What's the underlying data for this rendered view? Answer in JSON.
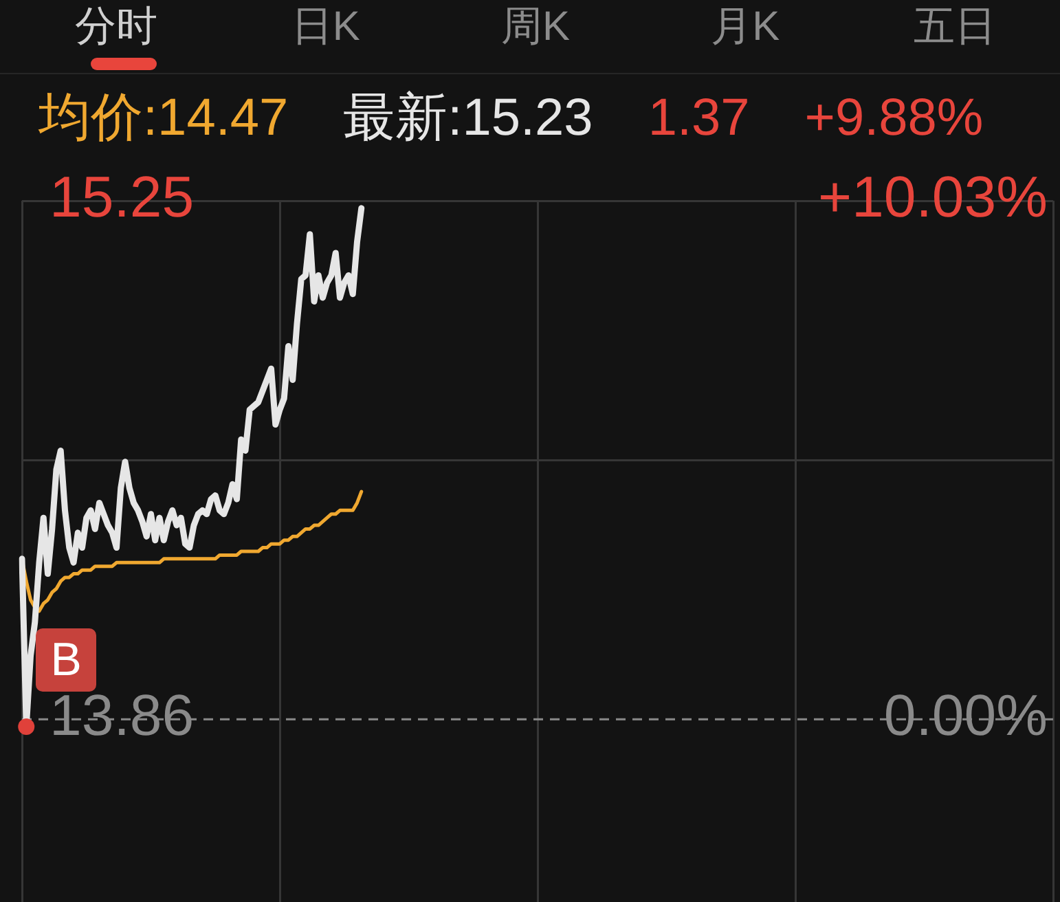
{
  "chart_data": {
    "type": "line",
    "annotations": [
      "分时",
      "日K",
      "周K",
      "月K",
      "五日",
      "均价:14.47",
      "最新:15.23",
      "1.37",
      "+9.88%",
      "B"
    ],
    "categories": [
      null,
      null,
      null,
      null,
      null,
      null,
      null,
      null,
      null,
      null,
      null,
      null,
      null,
      null,
      null,
      null,
      null,
      null,
      null,
      null,
      null,
      null,
      null,
      null,
      null,
      null,
      null,
      null,
      null,
      null,
      null,
      null,
      null,
      null,
      null,
      null,
      null,
      null,
      null,
      null,
      null,
      null,
      null,
      null,
      null,
      null,
      null,
      null,
      null,
      null,
      null,
      null,
      null,
      null,
      null,
      null,
      null,
      null,
      null,
      null,
      null,
      null,
      null,
      null,
      null,
      null,
      null,
      null,
      null,
      null,
      null,
      null,
      null,
      null,
      null,
      null,
      null,
      null,
      null,
      null,
      null,
      null,
      null,
      null,
      null,
      null,
      null,
      null,
      null,
      null,
      null,
      null,
      null,
      null,
      null,
      null,
      null,
      null,
      null,
      null,
      null,
      null,
      null,
      null,
      null,
      null,
      null,
      null,
      null,
      null,
      null,
      null,
      null,
      null,
      null,
      null,
      null,
      null,
      null,
      null,
      null,
      null,
      null,
      null,
      null,
      null,
      null,
      null,
      null,
      null,
      null,
      null,
      null,
      null,
      null,
      null,
      null,
      null,
      null,
      null,
      null,
      null,
      null,
      null,
      null,
      null,
      null,
      null,
      null,
      null,
      null,
      null,
      null,
      null,
      null,
      null,
      null,
      null,
      null,
      null,
      null,
      null,
      null,
      null,
      null,
      null,
      null,
      null,
      null,
      null,
      null,
      null,
      null,
      null,
      null,
      null,
      null,
      null,
      null,
      null,
      null,
      null,
      null,
      null,
      null,
      null,
      null,
      null,
      null,
      null,
      null,
      null,
      null,
      null,
      null,
      null,
      null,
      null,
      null,
      null,
      null,
      null,
      null,
      null,
      null,
      null,
      null,
      null,
      null,
      null,
      null,
      null,
      null,
      null,
      null,
      null,
      null,
      null,
      null,
      null,
      null,
      null,
      null,
      null,
      null,
      null,
      null,
      null,
      null,
      null,
      null,
      null,
      null,
      null,
      null,
      null,
      null,
      null,
      null,
      null,
      null
    ],
    "series": [
      {
        "color": "#e6e6e6",
        "values": [
          14.29,
          13.84,
          14.03,
          14.12,
          14.28,
          14.4,
          14.25,
          14.37,
          14.53,
          14.58,
          14.42,
          14.32,
          14.28,
          14.36,
          14.32,
          14.4,
          14.42,
          14.37,
          14.44,
          14.41,
          14.38,
          14.36,
          14.32,
          14.48,
          14.55,
          14.48,
          14.44,
          14.42,
          14.39,
          14.35,
          14.41,
          14.34,
          14.4,
          14.34,
          14.39,
          14.42,
          14.38,
          14.4,
          14.33,
          14.32,
          14.38,
          14.41,
          14.42,
          14.41,
          14.45,
          14.46,
          14.42,
          14.41,
          14.44,
          14.49,
          14.45,
          14.61,
          14.58,
          14.69,
          14.7,
          14.71,
          14.74,
          14.77,
          14.8,
          14.65,
          14.69,
          14.72,
          14.86,
          14.77,
          14.92,
          15.04,
          15.05,
          15.16,
          14.98,
          15.05,
          14.99,
          15.03,
          15.05,
          15.11,
          14.99,
          15.03,
          15.05,
          15.0,
          15.14,
          15.23,
          null,
          null,
          null,
          null,
          null,
          null,
          null,
          null,
          null,
          null,
          null,
          null,
          null,
          null,
          null,
          null,
          null,
          null,
          null,
          null,
          null,
          null,
          null,
          null,
          null,
          null,
          null,
          null,
          null,
          null,
          null,
          null,
          null,
          null,
          null,
          null,
          null,
          null,
          null,
          null,
          null,
          null,
          null,
          null,
          null,
          null,
          null,
          null,
          null,
          null,
          null,
          null,
          null,
          null,
          null,
          null,
          null,
          null,
          null,
          null,
          null,
          null,
          null,
          null,
          null,
          null,
          null,
          null,
          null,
          null,
          null,
          null,
          null,
          null,
          null,
          null,
          null,
          null,
          null,
          null,
          null,
          null,
          null,
          null,
          null,
          null,
          null,
          null,
          null,
          null,
          null,
          null,
          null,
          null,
          null,
          null,
          null,
          null,
          null,
          null,
          null,
          null,
          null,
          null,
          null,
          null,
          null,
          null,
          null,
          null,
          null,
          null,
          null,
          null,
          null,
          null,
          null,
          null,
          null,
          null,
          null,
          null,
          null,
          null,
          null,
          null,
          null,
          null,
          null,
          null,
          null,
          null,
          null,
          null,
          null,
          null,
          null,
          null,
          null,
          null,
          null,
          null,
          null,
          null,
          null,
          null,
          null,
          null,
          null,
          null,
          null,
          null,
          null,
          null,
          null,
          null,
          null,
          null,
          null,
          null,
          null
        ]
      },
      {
        "color": "#f0a830",
        "values": [
          14.29,
          14.23,
          14.18,
          14.16,
          14.15,
          14.17,
          14.18,
          14.2,
          14.21,
          14.23,
          14.24,
          14.24,
          14.25,
          14.25,
          14.26,
          14.26,
          14.26,
          14.27,
          14.27,
          14.27,
          14.27,
          14.27,
          14.28,
          14.28,
          14.28,
          14.28,
          14.28,
          14.28,
          14.28,
          14.28,
          14.28,
          14.28,
          14.28,
          14.29,
          14.29,
          14.29,
          14.29,
          14.29,
          14.29,
          14.29,
          14.29,
          14.29,
          14.29,
          14.29,
          14.29,
          14.29,
          14.3,
          14.3,
          14.3,
          14.3,
          14.3,
          14.31,
          14.31,
          14.31,
          14.31,
          14.31,
          14.32,
          14.32,
          14.33,
          14.33,
          14.33,
          14.34,
          14.34,
          14.35,
          14.35,
          14.36,
          14.37,
          14.37,
          14.38,
          14.38,
          14.39,
          14.4,
          14.41,
          14.41,
          14.42,
          14.42,
          14.42,
          14.42,
          14.44,
          14.47,
          null,
          null,
          null,
          null,
          null,
          null,
          null,
          null,
          null,
          null,
          null,
          null,
          null,
          null,
          null,
          null,
          null,
          null,
          null,
          null,
          null,
          null,
          null,
          null,
          null,
          null,
          null,
          null,
          null,
          null,
          null,
          null,
          null,
          null,
          null,
          null,
          null,
          null,
          null,
          null,
          null,
          null,
          null,
          null,
          null,
          null,
          null,
          null,
          null,
          null,
          null,
          null,
          null,
          null,
          null,
          null,
          null,
          null,
          null,
          null,
          null,
          null,
          null,
          null,
          null,
          null,
          null,
          null,
          null,
          null,
          null,
          null,
          null,
          null,
          null,
          null,
          null,
          null,
          null,
          null,
          null,
          null,
          null,
          null,
          null,
          null,
          null,
          null,
          null,
          null,
          null,
          null,
          null,
          null,
          null,
          null,
          null,
          null,
          null,
          null,
          null,
          null,
          null,
          null,
          null,
          null,
          null,
          null,
          null,
          null,
          null,
          null,
          null,
          null,
          null,
          null,
          null,
          null,
          null,
          null,
          null,
          null,
          null,
          null,
          null,
          null,
          null,
          null,
          null,
          null,
          null,
          null,
          null,
          null,
          null,
          null,
          null,
          null,
          null,
          null,
          null,
          null,
          null,
          null,
          null,
          null,
          null,
          null,
          null,
          null,
          null,
          null,
          null,
          null,
          null,
          null,
          null,
          null,
          null,
          null,
          null
        ]
      }
    ],
    "ylim": [
      13.37,
      15.25
    ],
    "yticks": [
      15.25,
      {
        "value": 14.555,
        "label": null
      },
      13.86
    ],
    "y2lim": [
      -3.54,
      10.03
    ],
    "y2ticks": [
      {
        "value": 10.03,
        "label": "+10.03%"
      },
      {
        "value": 0,
        "label": "0.00%"
      }
    ],
    "ref_lines": [
      {
        "axis": "y",
        "value": 13.86,
        "line_style": "dashed",
        "color": "#8a8a8a"
      }
    ],
    "grid": true,
    "tick_labels": "y",
    "marker": "none"
  }
}
